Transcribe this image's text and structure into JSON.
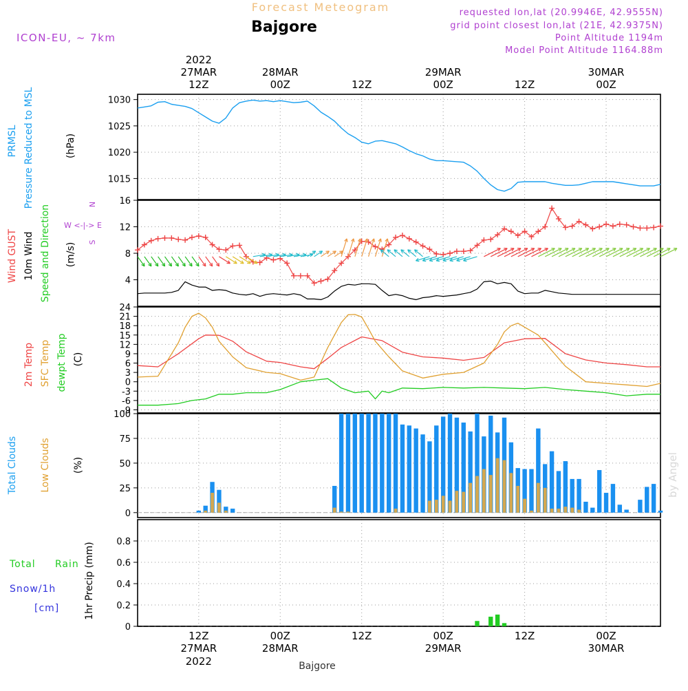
{
  "header": {
    "super_title": "Forecast Meteogram",
    "station": "Bajgore",
    "model": "ICON-EU, ~ 7km",
    "requested": "requested lon,lat (20.9946E, 42.9555N)",
    "grid_point": "grid point closest lon,lat (21E, 42.9375N)",
    "point_alt": "Point Altitude 1194m",
    "model_alt": "Model Point Altitude 1164.88m",
    "footer_station": "Bajgore",
    "watermark": "by Angel"
  },
  "time_axis": {
    "year": "2022",
    "hours": [
      "12Z",
      "00Z",
      "12Z",
      "00Z",
      "12Z",
      "00Z"
    ],
    "day_labels": [
      "27MAR",
      "28MAR",
      "29MAR",
      "30MAR"
    ],
    "start_hour": 3,
    "end_hour": 80,
    "tick_hours": [
      12,
      24,
      36,
      48,
      60,
      72
    ],
    "day_ticks": [
      12,
      24,
      48,
      72
    ]
  },
  "panel_labels": {
    "pressure": [
      "PRMSL",
      "Pressure Reduced to MSL",
      "(hPa)"
    ],
    "wind": [
      "Wind GUST",
      "10m Wind",
      "Speed and Direction",
      "(m/s)"
    ],
    "compass": [
      "N",
      "W <-|-> E",
      "S"
    ],
    "temp": [
      "2m Temp",
      "SFC Temp",
      "dewpt Temp",
      "(C)"
    ],
    "clouds": [
      "Total Clouds",
      "Low Clouds",
      "(%)"
    ],
    "precip": [
      "Total",
      "Rain",
      "Snow/1h",
      "[cm]",
      "1hr Precip (mm)"
    ]
  },
  "colors": {
    "pressure": "#1a9ff0",
    "gust": "#ee4444",
    "wind10m": "#000000",
    "temp2m": "#ee4444",
    "sfc": "#e0a030",
    "dewpt": "#22cc22",
    "total_clouds": "#1a90f0",
    "low_clouds": "#d4a850",
    "rain": "#22cc22",
    "snow": "#3333dd",
    "title_orange": "#f0c080",
    "purple": "#b040d0"
  },
  "chart_data": [
    {
      "type": "line",
      "panel": "pressure",
      "ylabel": "(hPa)",
      "ylim": [
        1011,
        1031
      ],
      "yticks": [
        1015,
        1020,
        1025,
        1030
      ],
      "series": [
        {
          "name": "PRMSL",
          "x": [
            3,
            4,
            5,
            6,
            7,
            8,
            9,
            10,
            11,
            12,
            13,
            14,
            15,
            16,
            17,
            18,
            19,
            20,
            21,
            22,
            23,
            24,
            25,
            26,
            27,
            28,
            29,
            30,
            31,
            32,
            33,
            34,
            35,
            36,
            37,
            38,
            39,
            40,
            41,
            42,
            43,
            44,
            45,
            46,
            47,
            48,
            49,
            50,
            51,
            52,
            53,
            54,
            55,
            56,
            57,
            58,
            59,
            60,
            61,
            62,
            63,
            64,
            65,
            66,
            67,
            68,
            69,
            70,
            71,
            72,
            73,
            74,
            75,
            76,
            77,
            78,
            79,
            80
          ],
          "values": [
            1028.4,
            1028.6,
            1028.8,
            1029.5,
            1029.6,
            1029.1,
            1028.9,
            1028.7,
            1028.3,
            1027.5,
            1026.7,
            1025.9,
            1025.5,
            1026.5,
            1028.4,
            1029.4,
            1029.7,
            1029.9,
            1029.7,
            1029.8,
            1029.6,
            1029.8,
            1029.6,
            1029.4,
            1029.5,
            1029.7,
            1028.8,
            1027.6,
            1026.8,
            1025.9,
            1024.6,
            1023.5,
            1022.8,
            1021.9,
            1021.6,
            1022.1,
            1022.2,
            1021.9,
            1021.6,
            1021.0,
            1020.3,
            1019.7,
            1019.3,
            1018.7,
            1018.4,
            1018.4,
            1018.3,
            1018.2,
            1018.1,
            1017.4,
            1016.4,
            1015.0,
            1013.8,
            1012.9,
            1012.6,
            1013.1,
            1014.3,
            1014.4,
            1014.4,
            1014.4,
            1014.4,
            1014.1,
            1013.9,
            1013.7,
            1013.7,
            1013.8,
            1014.1,
            1014.4,
            1014.4,
            1014.4,
            1014.4,
            1014.2,
            1014.0,
            1013.8,
            1013.6,
            1013.6,
            1013.6,
            1013.9
          ]
        }
      ]
    },
    {
      "type": "line",
      "panel": "wind",
      "ylabel": "(m/s)",
      "ylim": [
        0,
        16
      ],
      "yticks": [
        4,
        8,
        12,
        16
      ],
      "series": [
        {
          "name": "Wind GUST",
          "x": [
            3,
            4,
            5,
            6,
            7,
            8,
            9,
            10,
            11,
            12,
            13,
            14,
            15,
            16,
            17,
            18,
            19,
            20,
            21,
            22,
            23,
            24,
            25,
            26,
            27,
            28,
            29,
            30,
            31,
            32,
            33,
            34,
            35,
            36,
            37,
            38,
            39,
            40,
            41,
            42,
            43,
            44,
            45,
            46,
            47,
            48,
            49,
            50,
            51,
            52,
            53,
            54,
            55,
            56,
            57,
            58,
            59,
            60,
            61,
            62,
            63,
            64,
            65,
            66,
            67,
            68,
            69,
            70,
            71,
            72,
            73,
            74,
            75,
            76,
            77,
            78,
            79,
            80
          ],
          "values": [
            8.5,
            9.3,
            9.9,
            10.2,
            10.3,
            10.3,
            10.1,
            10.0,
            10.4,
            10.6,
            10.4,
            9.3,
            8.6,
            8.5,
            9.1,
            9.2,
            7.5,
            6.7,
            6.6,
            7.3,
            7.0,
            7.2,
            6.5,
            4.6,
            4.6,
            4.6,
            3.5,
            3.8,
            4.1,
            5.4,
            6.5,
            7.5,
            8.5,
            9.8,
            9.7,
            9.0,
            8.6,
            9.3,
            10.4,
            10.7,
            10.2,
            9.7,
            9.1,
            8.6,
            7.9,
            7.8,
            8.0,
            8.3,
            8.3,
            8.4,
            9.2,
            10.0,
            10.1,
            10.8,
            11.7,
            11.3,
            10.7,
            11.3,
            10.5,
            11.3,
            12.0,
            14.8,
            13.2,
            11.9,
            12.1,
            12.8,
            12.3,
            11.7,
            12.0,
            12.4,
            12.1,
            12.4,
            12.3,
            12.0,
            11.8,
            11.8,
            11.9,
            12.1
          ]
        },
        {
          "name": "10m Wind",
          "x": [
            3,
            4,
            5,
            6,
            7,
            8,
            9,
            10,
            11,
            12,
            13,
            14,
            15,
            16,
            17,
            18,
            19,
            20,
            21,
            22,
            23,
            24,
            25,
            26,
            27,
            28,
            29,
            30,
            31,
            32,
            33,
            34,
            35,
            36,
            37,
            38,
            39,
            40,
            41,
            42,
            43,
            44,
            45,
            46,
            47,
            48,
            49,
            50,
            51,
            52,
            53,
            54,
            55,
            56,
            57,
            58,
            59,
            60,
            61,
            62,
            63,
            64,
            65,
            66,
            67,
            68,
            69,
            70,
            71,
            72,
            73,
            74,
            75,
            76,
            77,
            78,
            79,
            80
          ],
          "values": [
            1.9,
            2.0,
            2.0,
            2.0,
            2.0,
            2.1,
            2.4,
            3.7,
            3.2,
            2.9,
            2.9,
            2.4,
            2.5,
            2.4,
            2.0,
            1.8,
            1.7,
            1.9,
            1.5,
            1.8,
            1.9,
            1.8,
            1.7,
            1.9,
            1.7,
            1.1,
            1.1,
            1.0,
            1.4,
            2.3,
            3.0,
            3.3,
            3.2,
            3.4,
            3.4,
            3.3,
            2.4,
            1.6,
            1.8,
            1.6,
            1.2,
            1.0,
            1.3,
            1.4,
            1.6,
            1.5,
            1.6,
            1.7,
            1.9,
            2.1,
            2.6,
            3.7,
            3.8,
            3.4,
            3.6,
            3.4,
            2.3,
            1.9,
            2.0,
            2.0,
            2.4,
            2.2,
            2.0,
            1.9,
            1.8,
            1.8,
            1.8,
            1.8,
            1.8,
            1.8,
            1.8,
            1.8,
            1.8,
            1.8,
            1.8,
            1.8,
            1.8,
            1.8
          ]
        }
      ]
    },
    {
      "type": "line",
      "panel": "temp",
      "ylabel": "(C)",
      "ylim": [
        -10,
        24
      ],
      "yticks": [
        -9,
        -6,
        -3,
        0,
        3,
        6,
        9,
        12,
        15,
        18,
        21,
        24
      ],
      "series": [
        {
          "name": "2m Temp",
          "x": [
            3,
            6,
            9,
            12,
            13,
            15,
            17,
            19,
            22,
            24,
            27,
            29,
            31,
            33,
            36,
            39,
            42,
            45,
            48,
            51,
            54,
            57,
            60,
            63,
            66,
            69,
            72,
            75,
            78,
            80
          ],
          "values": [
            5.2,
            4.8,
            9.0,
            13.8,
            15.0,
            14.9,
            13.0,
            9.6,
            6.6,
            6.2,
            4.8,
            4.2,
            7.5,
            11.0,
            14.4,
            13.2,
            9.5,
            8.0,
            7.6,
            6.9,
            7.8,
            12.5,
            13.8,
            13.9,
            9.0,
            7.0,
            6.0,
            5.5,
            4.8,
            4.8
          ]
        },
        {
          "name": "SFC Temp",
          "x": [
            3,
            6,
            9,
            10,
            11,
            12,
            13,
            14,
            15,
            17,
            19,
            22,
            24,
            27,
            29,
            31,
            33,
            34,
            35,
            36,
            37,
            38,
            40,
            42,
            45,
            48,
            51,
            54,
            56,
            57,
            58,
            59,
            60,
            62,
            63,
            66,
            69,
            72,
            75,
            78,
            80
          ],
          "values": [
            1.5,
            1.8,
            12.5,
            17.5,
            21.0,
            22.0,
            20.5,
            17.5,
            13.0,
            8.0,
            4.5,
            3.0,
            2.6,
            0.5,
            1.5,
            11.0,
            19.0,
            21.5,
            21.6,
            20.8,
            17.0,
            13.0,
            8.0,
            3.5,
            1.2,
            2.4,
            3.0,
            6.0,
            12.0,
            16.0,
            18.0,
            18.8,
            17.5,
            15.0,
            12.5,
            5.0,
            0.0,
            -0.5,
            -1.0,
            -1.5,
            -0.5
          ]
        },
        {
          "name": "dewpt Temp",
          "x": [
            3,
            6,
            9,
            11,
            13,
            15,
            17,
            19,
            22,
            24,
            27,
            29,
            31,
            33,
            35,
            37,
            38,
            39,
            40,
            42,
            45,
            48,
            51,
            54,
            57,
            60,
            63,
            66,
            69,
            72,
            75,
            78,
            80
          ],
          "values": [
            -7.5,
            -7.5,
            -7.0,
            -6.0,
            -5.5,
            -4.0,
            -4.0,
            -3.5,
            -3.5,
            -2.5,
            0.0,
            0.5,
            1.0,
            -2.0,
            -3.5,
            -3.0,
            -5.5,
            -3.0,
            -3.5,
            -2.0,
            -2.2,
            -1.8,
            -2.0,
            -1.8,
            -2.0,
            -2.2,
            -1.8,
            -2.5,
            -3.0,
            -3.5,
            -4.5,
            -4.0,
            -4.0
          ]
        }
      ]
    },
    {
      "type": "bar",
      "panel": "clouds",
      "ylabel": "(%)",
      "ylim": [
        -5,
        100
      ],
      "yticks": [
        0,
        25,
        50,
        75,
        100
      ],
      "series": [
        {
          "name": "Total Clouds",
          "x": [
            12,
            13,
            14,
            15,
            16,
            17,
            32,
            33,
            34,
            35,
            36,
            37,
            38,
            39,
            40,
            41,
            42,
            43,
            44,
            45,
            46,
            47,
            48,
            49,
            50,
            51,
            52,
            53,
            54,
            55,
            56,
            57,
            58,
            59,
            60,
            61,
            62,
            63,
            64,
            65,
            66,
            67,
            68,
            69,
            70,
            71,
            72,
            73,
            74,
            75,
            76,
            77,
            78,
            79,
            80
          ],
          "values": [
            2,
            7,
            31,
            23,
            6,
            4,
            27,
            100,
            100,
            100,
            100,
            100,
            100,
            100,
            100,
            100,
            89,
            88,
            85,
            79,
            72,
            88,
            97,
            100,
            96,
            91,
            82,
            100,
            77,
            98,
            81,
            96,
            71,
            45,
            44,
            44,
            85,
            49,
            62,
            42,
            52,
            34,
            34,
            11,
            5,
            43,
            20,
            29,
            8,
            3,
            0,
            13,
            26,
            29,
            2
          ]
        },
        {
          "name": "Low Clouds",
          "x": [
            13,
            14,
            15,
            16,
            32,
            33,
            34,
            41,
            46,
            47,
            48,
            49,
            50,
            51,
            52,
            53,
            54,
            55,
            56,
            57,
            58,
            59,
            60,
            61,
            62,
            63,
            64,
            65,
            66,
            67,
            68
          ],
          "values": [
            2,
            20,
            10,
            2,
            5,
            1,
            1,
            4,
            12,
            13,
            17,
            12,
            22,
            21,
            30,
            37,
            44,
            38,
            55,
            53,
            40,
            27,
            14,
            2,
            30,
            25,
            4,
            4,
            6,
            5,
            3
          ]
        }
      ]
    },
    {
      "type": "bar",
      "panel": "precip",
      "ylabel": "1hr Precip (mm)",
      "ylim": [
        0,
        1.0
      ],
      "yticks": [
        0,
        0.2,
        0.4,
        0.6,
        0.8
      ],
      "series": [
        {
          "name": "Rain",
          "x": [
            53,
            55,
            56,
            57
          ],
          "values": [
            0.05,
            0.09,
            0.11,
            0.03
          ]
        }
      ]
    }
  ]
}
